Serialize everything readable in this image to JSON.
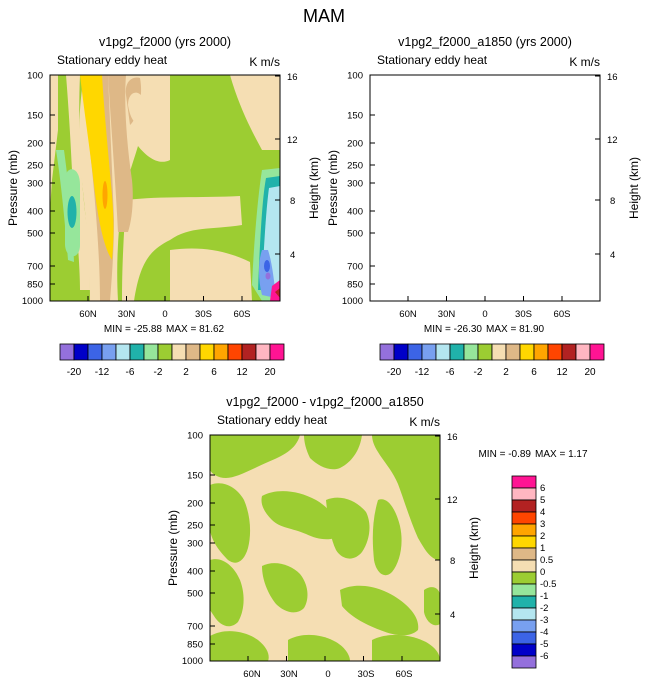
{
  "title": "MAM",
  "colors": {
    "c_m20": "#9470dc",
    "c_m16": "#0000c8",
    "c_m12": "#3c64e6",
    "c_m8": "#78a0f0",
    "c_m6": "#b4e6f0",
    "c_m4": "#20b2aa",
    "c_m3": "#96e69b",
    "c_m2": "#9ccd32",
    "c_0": "#f5deb3",
    "c_2": "#deb887",
    "c_4": "#ffd700",
    "c_6": "#ffa500",
    "c_8": "#ff4500",
    "c_12": "#b22222",
    "c_16": "#ffb6c1",
    "c_20": "#ff1493"
  },
  "chart_data": [
    {
      "type": "contour",
      "title": "v1pg2_f2000 (yrs 2000)",
      "left_label": "Stationary eddy heat",
      "units": "K m/s",
      "ylabel": "Pressure (mb)",
      "ylabel_right": "Height (km)",
      "x_ticks": [
        "60N",
        "30N",
        "0",
        "30S",
        "60S"
      ],
      "x_values": [
        60,
        30,
        0,
        -30,
        -60
      ],
      "xlim": [
        90,
        -90
      ],
      "y_ticks": [
        "100",
        "150",
        "200",
        "250",
        "300",
        "400",
        "500",
        "700",
        "850",
        "1000"
      ],
      "y_values": [
        100,
        150,
        200,
        250,
        300,
        400,
        500,
        700,
        850,
        1000
      ],
      "ylim": [
        1000,
        100
      ],
      "right_ticks": [
        "16",
        "12",
        "8",
        "4"
      ],
      "min_label": "MIN = -25.88",
      "max_label": "MAX =  81.62",
      "min": -25.88,
      "max": 81.62
    },
    {
      "type": "contour",
      "title": "v1pg2_f2000_a1850 (yrs 2000)",
      "left_label": "Stationary eddy heat",
      "units": "K m/s",
      "ylabel": "Pressure (mb)",
      "ylabel_right": "Height (km)",
      "x_ticks": [
        "60N",
        "30N",
        "0",
        "30S",
        "60S"
      ],
      "x_values": [
        60,
        30,
        0,
        -30,
        -60
      ],
      "xlim": [
        90,
        -90
      ],
      "y_ticks": [
        "100",
        "150",
        "200",
        "250",
        "300",
        "400",
        "500",
        "700",
        "850",
        "1000"
      ],
      "y_values": [
        100,
        150,
        200,
        250,
        300,
        400,
        500,
        700,
        850,
        1000
      ],
      "ylim": [
        1000,
        100
      ],
      "right_ticks": [
        "16",
        "12",
        "8",
        "4"
      ],
      "min_label": "MIN = -26.30",
      "max_label": "MAX =  81.90",
      "min": -26.3,
      "max": 81.9
    },
    {
      "type": "contour",
      "title": "v1pg2_f2000 - v1pg2_f2000_a1850",
      "left_label": "Stationary eddy heat",
      "units": "K m/s",
      "ylabel": "Pressure (mb)",
      "ylabel_right": "Height (km)",
      "x_ticks": [
        "60N",
        "30N",
        "0",
        "30S",
        "60S"
      ],
      "x_values": [
        60,
        30,
        0,
        -30,
        -60
      ],
      "xlim": [
        90,
        -90
      ],
      "y_ticks": [
        "100",
        "150",
        "200",
        "250",
        "300",
        "400",
        "500",
        "700",
        "850",
        "1000"
      ],
      "y_values": [
        100,
        150,
        200,
        250,
        300,
        400,
        500,
        700,
        850,
        1000
      ],
      "ylim": [
        1000,
        100
      ],
      "right_ticks": [
        "16",
        "12",
        "8",
        "4"
      ],
      "min_label": "MIN =  -0.89",
      "max_label": "MAX =   1.17",
      "min": -0.89,
      "max": 1.17
    }
  ],
  "colorbar_main": {
    "colors": [
      "#9470dc",
      "#0000c8",
      "#3c64e6",
      "#78a0f0",
      "#b4e6f0",
      "#20b2aa",
      "#96e69b",
      "#9ccd32",
      "#f5deb3",
      "#deb887",
      "#ffd700",
      "#ffa500",
      "#ff4500",
      "#b22222",
      "#ffb6c1",
      "#ff1493"
    ],
    "labels": [
      "-20",
      "-12",
      "-6",
      "-2",
      "2",
      "6",
      "12",
      "20"
    ]
  },
  "colorbar_diff": {
    "colors": [
      "#ff1493",
      "#ffb6c1",
      "#b22222",
      "#ff4500",
      "#ffa500",
      "#ffd700",
      "#deb887",
      "#f5deb3",
      "#9ccd32",
      "#96e69b",
      "#20b2aa",
      "#b4e6f0",
      "#78a0f0",
      "#3c64e6",
      "#0000c8",
      "#9470dc"
    ],
    "labels": [
      "6",
      "5",
      "4",
      "3",
      "2",
      "1",
      "0.5",
      "0",
      "-0.5",
      "-1",
      "-2",
      "-3",
      "-4",
      "-5",
      "-6"
    ]
  }
}
